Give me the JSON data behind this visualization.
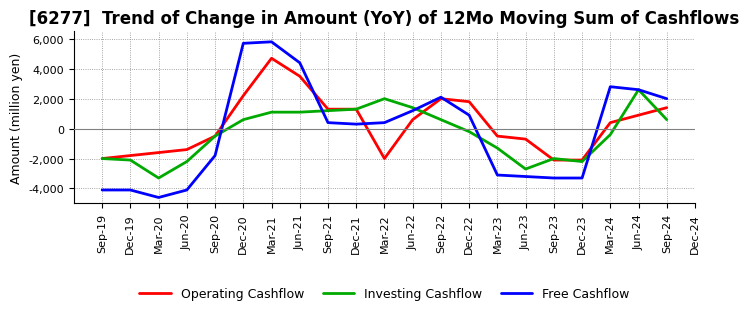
{
  "title": "[6277]  Trend of Change in Amount (YoY) of 12Mo Moving Sum of Cashflows",
  "ylabel": "Amount (million yen)",
  "x_labels": [
    "Sep-19",
    "Dec-19",
    "Mar-20",
    "Jun-20",
    "Sep-20",
    "Dec-20",
    "Mar-21",
    "Jun-21",
    "Sep-21",
    "Dec-21",
    "Mar-22",
    "Jun-22",
    "Sep-22",
    "Dec-22",
    "Mar-23",
    "Jun-23",
    "Sep-23",
    "Dec-23",
    "Mar-24",
    "Jun-24",
    "Sep-24",
    "Dec-24"
  ],
  "operating_cashflow": [
    -2000,
    -1800,
    -1600,
    -1400,
    -500,
    2200,
    4700,
    3500,
    1300,
    1300,
    -2000,
    600,
    2000,
    1800,
    -500,
    -700,
    -2100,
    -2100,
    400,
    900,
    1400,
    null
  ],
  "investing_cashflow": [
    -2000,
    -2100,
    -3300,
    -2200,
    -500,
    600,
    1100,
    1100,
    1200,
    1300,
    2000,
    1400,
    600,
    -200,
    -1300,
    -2700,
    -2000,
    -2200,
    -400,
    2600,
    600,
    null
  ],
  "free_cashflow": [
    -4100,
    -4100,
    -4600,
    -4100,
    -1800,
    5700,
    5800,
    4400,
    400,
    300,
    400,
    1200,
    2100,
    900,
    -3100,
    -3200,
    -3300,
    -3300,
    2800,
    2600,
    2000,
    null
  ],
  "operating_color": "#ff0000",
  "investing_color": "#00aa00",
  "free_color": "#0000ff",
  "ylim": [
    -5000,
    6500
  ],
  "yticks": [
    -4000,
    -2000,
    0,
    2000,
    4000,
    6000
  ],
  "background_color": "#ffffff",
  "grid_color": "#888888",
  "title_fontsize": 12,
  "axis_fontsize": 9,
  "legend_fontsize": 9,
  "linewidth": 2.0
}
